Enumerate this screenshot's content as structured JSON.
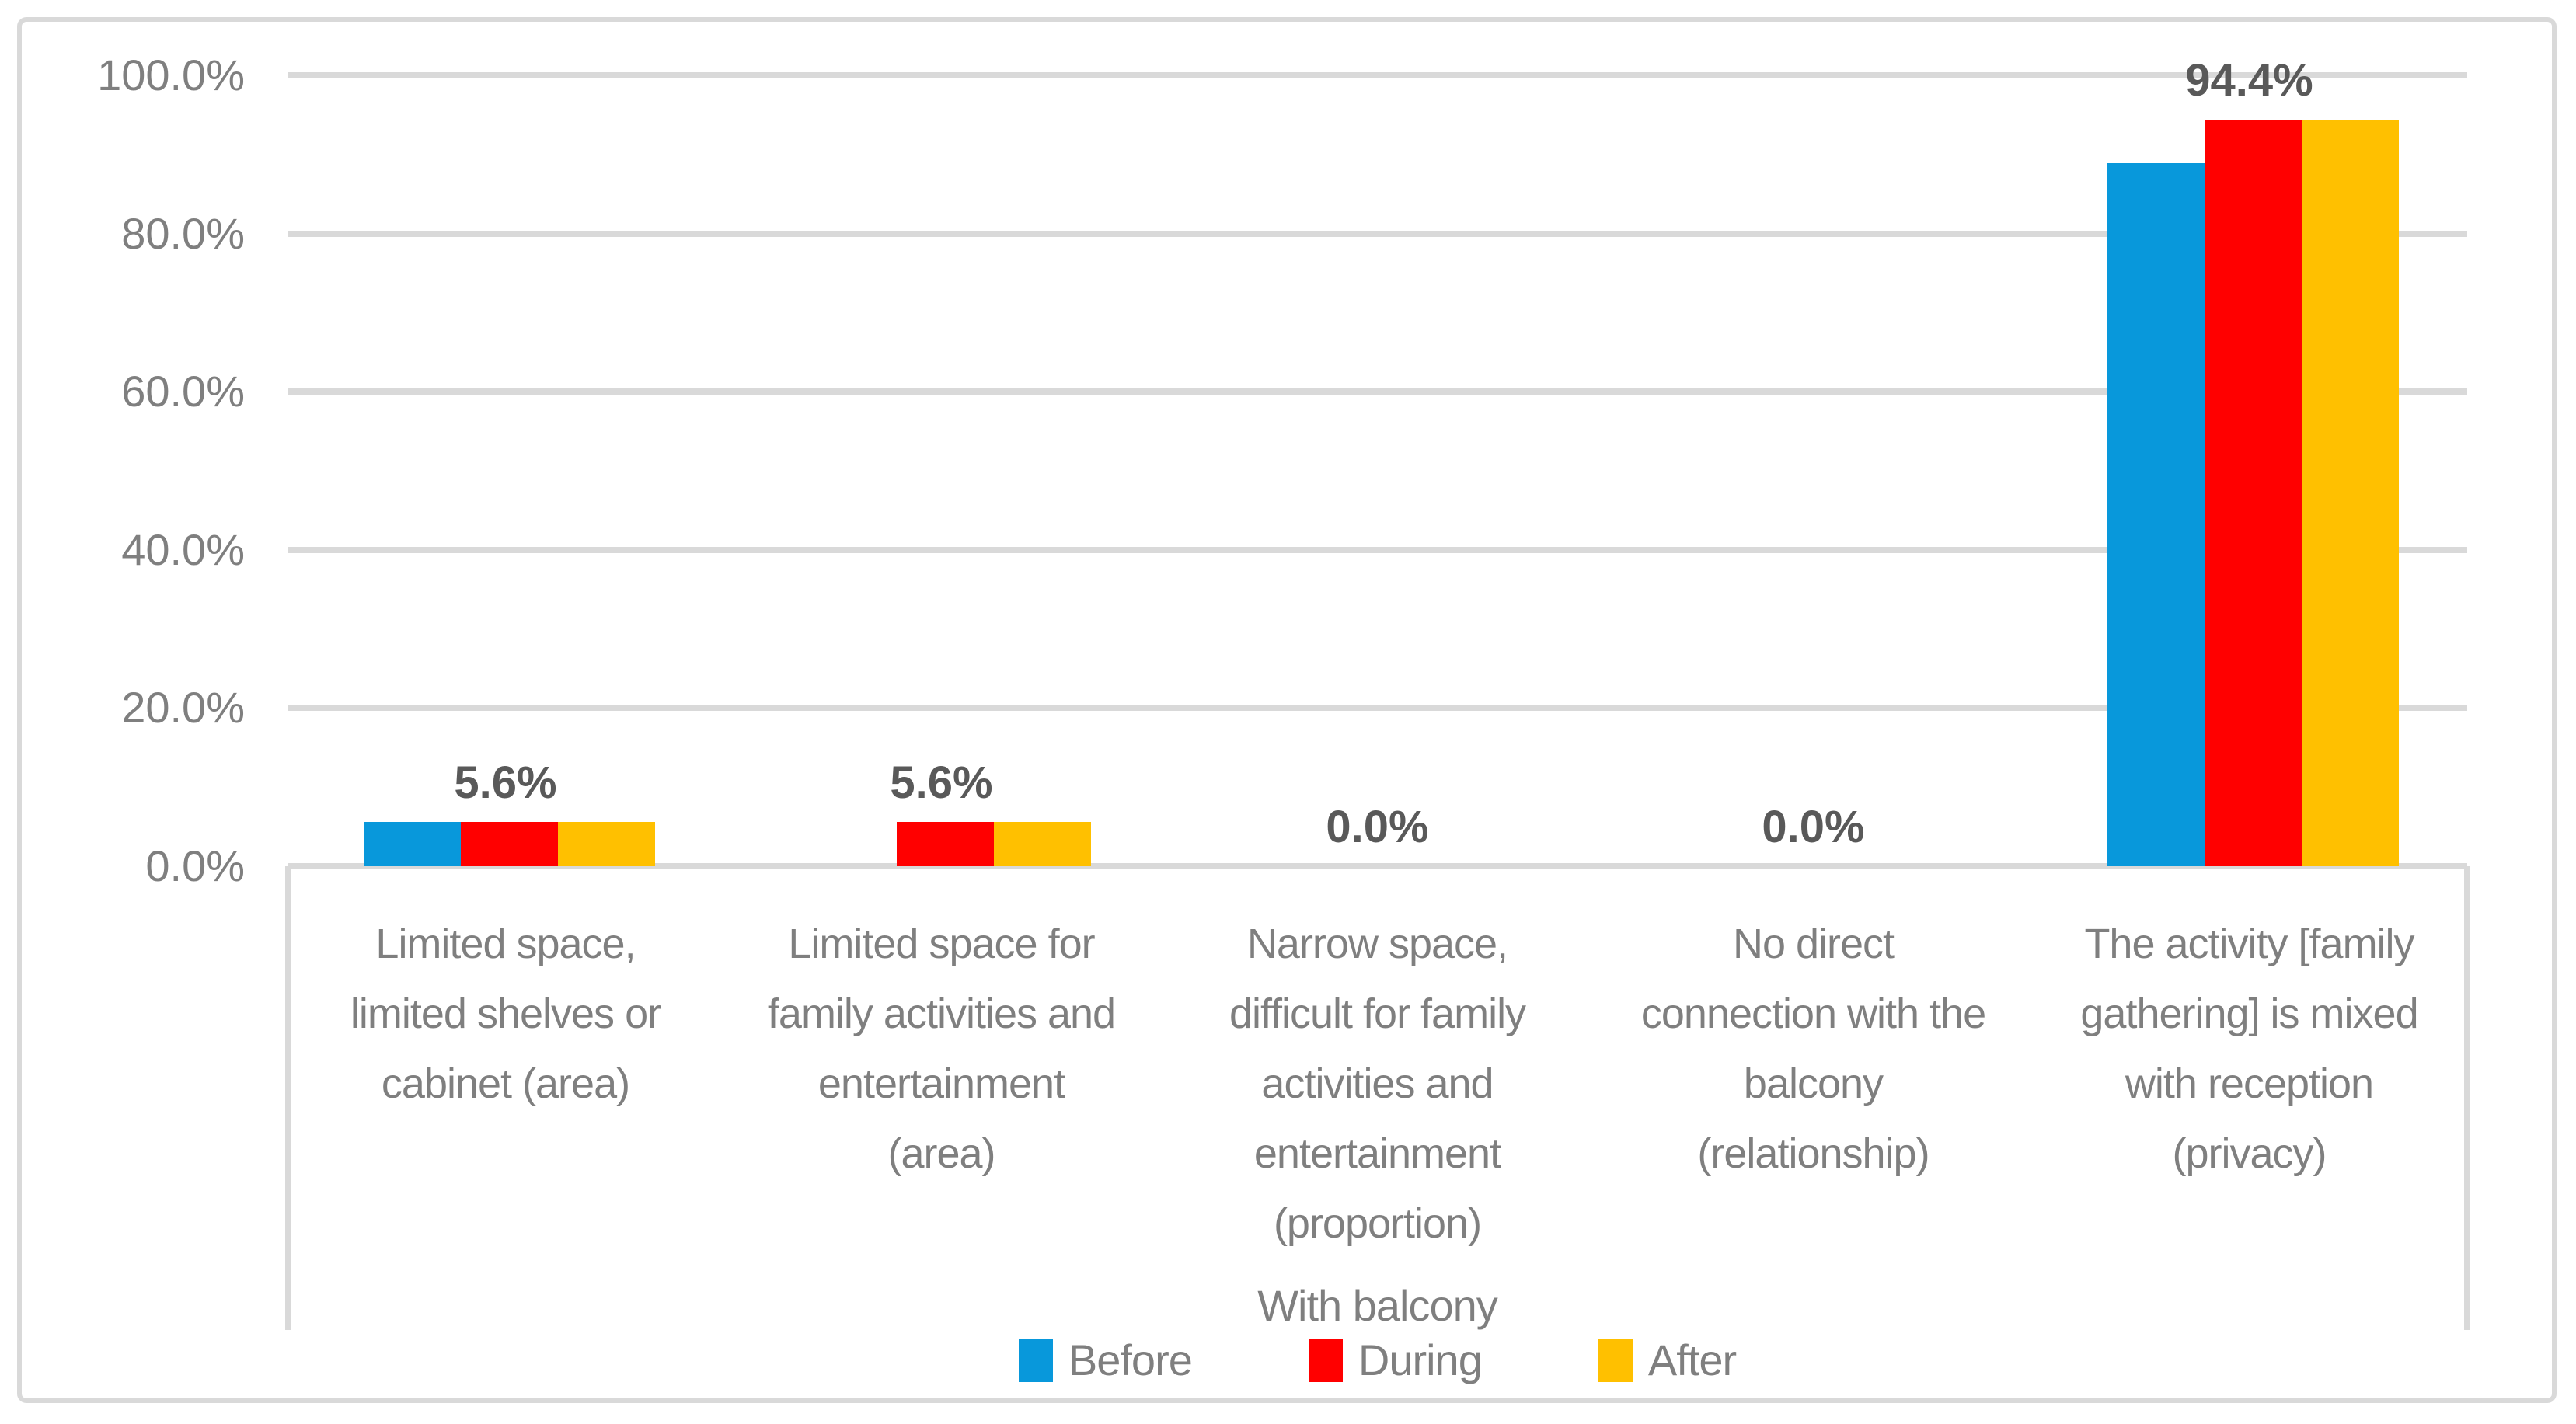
{
  "chart_data": {
    "type": "bar",
    "title": "",
    "group_label": "With balcony",
    "categories": [
      {
        "lines": [
          "Limited space,",
          "limited shelves or",
          "cabinet (area)"
        ],
        "text": "Limited space, limited shelves or cabinet (area)"
      },
      {
        "lines": [
          "Limited space for",
          "family activities and",
          "entertainment",
          "(area)"
        ],
        "text": "Limited space for family activities and entertainment (area)"
      },
      {
        "lines": [
          "Narrow space,",
          "difficult for family",
          "activities and",
          "entertainment",
          "(proportion)"
        ],
        "text": "Narrow space, difficult for family activities and entertainment (proportion)"
      },
      {
        "lines": [
          "No direct",
          "connection with the",
          "balcony",
          "(relationship)"
        ],
        "text": "No direct connection with the balcony (relationship)"
      },
      {
        "lines": [
          "The activity [family",
          "gathering] is mixed",
          "with reception",
          "(privacy)"
        ],
        "text": "The activity [family gathering] is mixed with reception (privacy)"
      }
    ],
    "series": [
      {
        "name": "Before",
        "color": "#0898DB",
        "values": [
          5.6,
          0.0,
          0.0,
          0.0,
          88.9
        ]
      },
      {
        "name": "During",
        "color": "#FF0000",
        "values": [
          5.6,
          5.6,
          0.0,
          0.0,
          94.4
        ]
      },
      {
        "name": "After",
        "color": "#FFC000",
        "values": [
          5.6,
          5.6,
          0.0,
          0.0,
          94.4
        ]
      }
    ],
    "data_labels": [
      "5.6%",
      "5.6%",
      "0.0%",
      "0.0%",
      "94.4%"
    ],
    "y_axis": {
      "min": 0,
      "max": 100,
      "tick_step": 20,
      "ticks": [
        "0.0%",
        "20.0%",
        "40.0%",
        "60.0%",
        "80.0%",
        "100.0%"
      ]
    },
    "legend": {
      "position": "bottom",
      "items": [
        {
          "label": "Before",
          "color": "#0898DB"
        },
        {
          "label": "During",
          "color": "#FF0000"
        },
        {
          "label": "After",
          "color": "#FFC000"
        }
      ]
    },
    "grid": true,
    "colors": {
      "gridline": "#D9D9D9",
      "frame_border": "#D9D9D9",
      "axis_text": "#7F7F7F",
      "category_text": "#7F7F7F",
      "data_label_text": "#595959",
      "background": "#FFFFFF"
    }
  }
}
